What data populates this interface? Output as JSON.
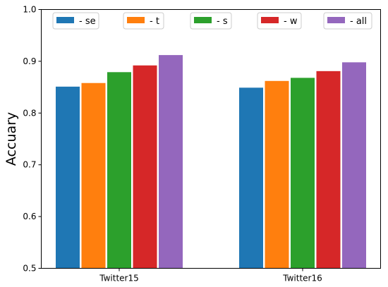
{
  "chart_data": {
    "type": "bar",
    "title": "",
    "xlabel": "",
    "ylabel": "Accuary",
    "ylim": [
      0.5,
      1.0
    ],
    "yticks": [
      "0.5",
      "0.6",
      "0.7",
      "0.8",
      "0.9",
      "1.0"
    ],
    "categories": [
      "Twitter15",
      "Twitter16"
    ],
    "legend_position": "top",
    "grid": false,
    "series": [
      {
        "name": "- se",
        "color": "#1f77b4",
        "values": [
          0.851,
          0.849
        ]
      },
      {
        "name": "- t",
        "color": "#ff7f0e",
        "values": [
          0.858,
          0.862
        ]
      },
      {
        "name": "- s",
        "color": "#2ca02c",
        "values": [
          0.879,
          0.868
        ]
      },
      {
        "name": "- w",
        "color": "#d62728",
        "values": [
          0.892,
          0.881
        ]
      },
      {
        "name": "- all",
        "color": "#9467bd",
        "values": [
          0.912,
          0.898
        ]
      }
    ]
  }
}
